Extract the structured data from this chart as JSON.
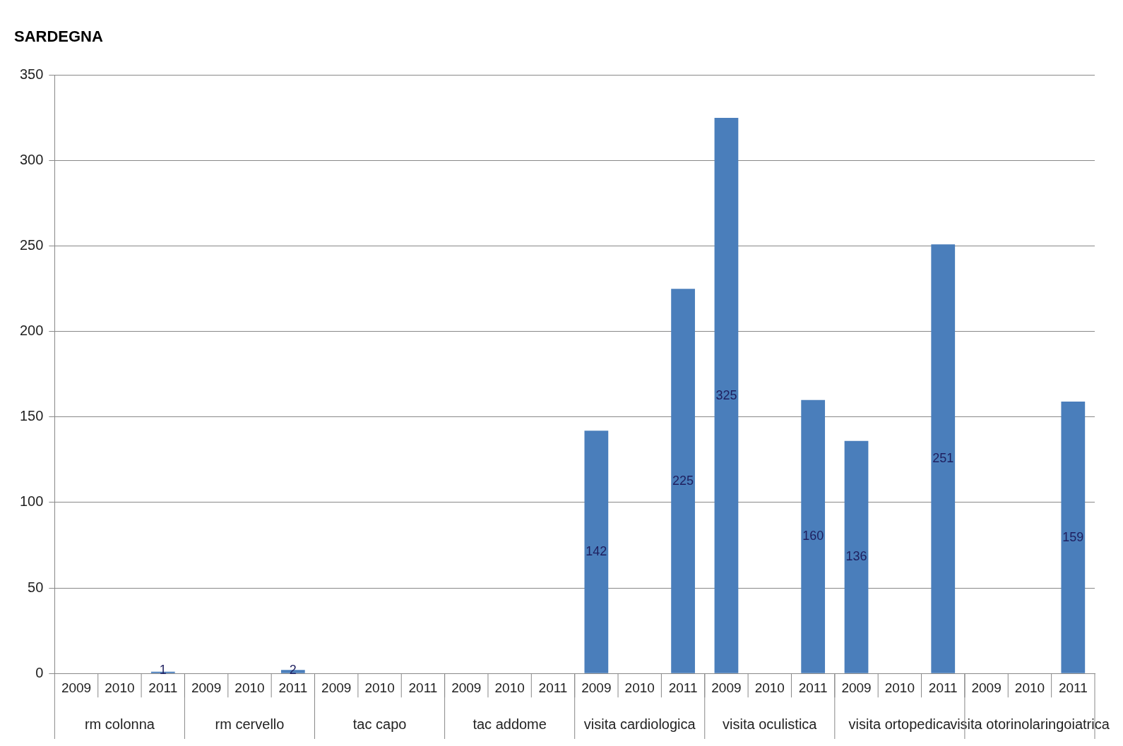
{
  "chart_data": {
    "type": "bar",
    "title": "SARDEGNA",
    "categories": [
      "2009",
      "2010",
      "2011",
      "2009",
      "2010",
      "2011",
      "2009",
      "2010",
      "2011",
      "2009",
      "2010",
      "2011",
      "2009",
      "2010",
      "2011",
      "2009",
      "2010",
      "2011",
      "2009",
      "2010",
      "2011",
      "2009",
      "2010",
      "2011"
    ],
    "values": [
      null,
      null,
      1,
      null,
      null,
      2,
      null,
      null,
      null,
      null,
      null,
      null,
      142,
      null,
      225,
      325,
      null,
      160,
      136,
      null,
      251,
      null,
      null,
      159
    ],
    "color": "#4a7ebb",
    "ylim": [
      0,
      350
    ],
    "yticks": [
      0,
      50,
      100,
      150,
      200,
      250,
      300,
      350
    ],
    "grid": "y",
    "data_labels": true,
    "annotations": [
      "rm colonna",
      "rm cervello",
      "tac capo",
      "tac addome",
      "visita cardiologica",
      "visita oculistica",
      "visita ortopedica",
      "visita otorinolaringoiatrica"
    ]
  }
}
